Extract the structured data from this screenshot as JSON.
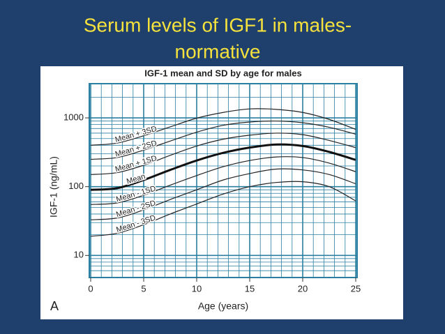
{
  "slide": {
    "title": [
      "Serum levels of IGF1 in males-",
      "normative"
    ]
  },
  "chart_data": {
    "type": "line",
    "title": "IGF-1 mean and SD by age for males",
    "panel_label": "A",
    "x_label": "Age (years)",
    "y_label": "IGF-1 (ng/mL)",
    "x": [
      0,
      2.5,
      5,
      7.5,
      10,
      12.5,
      15,
      17.5,
      20,
      22.5,
      25
    ],
    "series": [
      {
        "name": "Mean + 3SD",
        "color": "#222222",
        "width": 1.2,
        "values": [
          400,
          430,
          550,
          740,
          990,
          1200,
          1350,
          1330,
          1200,
          950,
          680
        ]
      },
      {
        "name": "Mean + 2SD",
        "color": "#222222",
        "width": 1.2,
        "values": [
          250,
          265,
          340,
          460,
          620,
          780,
          870,
          900,
          850,
          730,
          580
        ]
      },
      {
        "name": "Mean + 1SD",
        "color": "#222222",
        "width": 1.2,
        "values": [
          150,
          160,
          205,
          285,
          390,
          490,
          560,
          600,
          570,
          470,
          370
        ]
      },
      {
        "name": "Mean",
        "color": "#111111",
        "width": 3,
        "values": [
          90,
          95,
          125,
          175,
          240,
          310,
          370,
          410,
          390,
          320,
          245
        ]
      },
      {
        "name": "Mean - 1SD",
        "color": "#222222",
        "width": 1.2,
        "values": [
          55,
          58,
          75,
          105,
          145,
          195,
          240,
          270,
          265,
          220,
          165
        ]
      },
      {
        "name": "Mean - 2SD",
        "color": "#222222",
        "width": 1.2,
        "values": [
          33,
          35,
          46,
          65,
          90,
          125,
          155,
          180,
          175,
          150,
          110
        ]
      },
      {
        "name": "Mean - 3SD",
        "color": "#222222",
        "width": 1.2,
        "values": [
          19,
          21,
          28,
          40,
          56,
          78,
          100,
          115,
          118,
          100,
          62
        ]
      }
    ],
    "xlim": [
      0,
      25
    ],
    "xticks": [
      0,
      5,
      10,
      15,
      20,
      25
    ],
    "ylim": [
      5,
      3000
    ],
    "yticks": [
      10,
      100,
      1000
    ],
    "log_y": true,
    "grid": true,
    "grid_color": "#2a7fa0"
  }
}
